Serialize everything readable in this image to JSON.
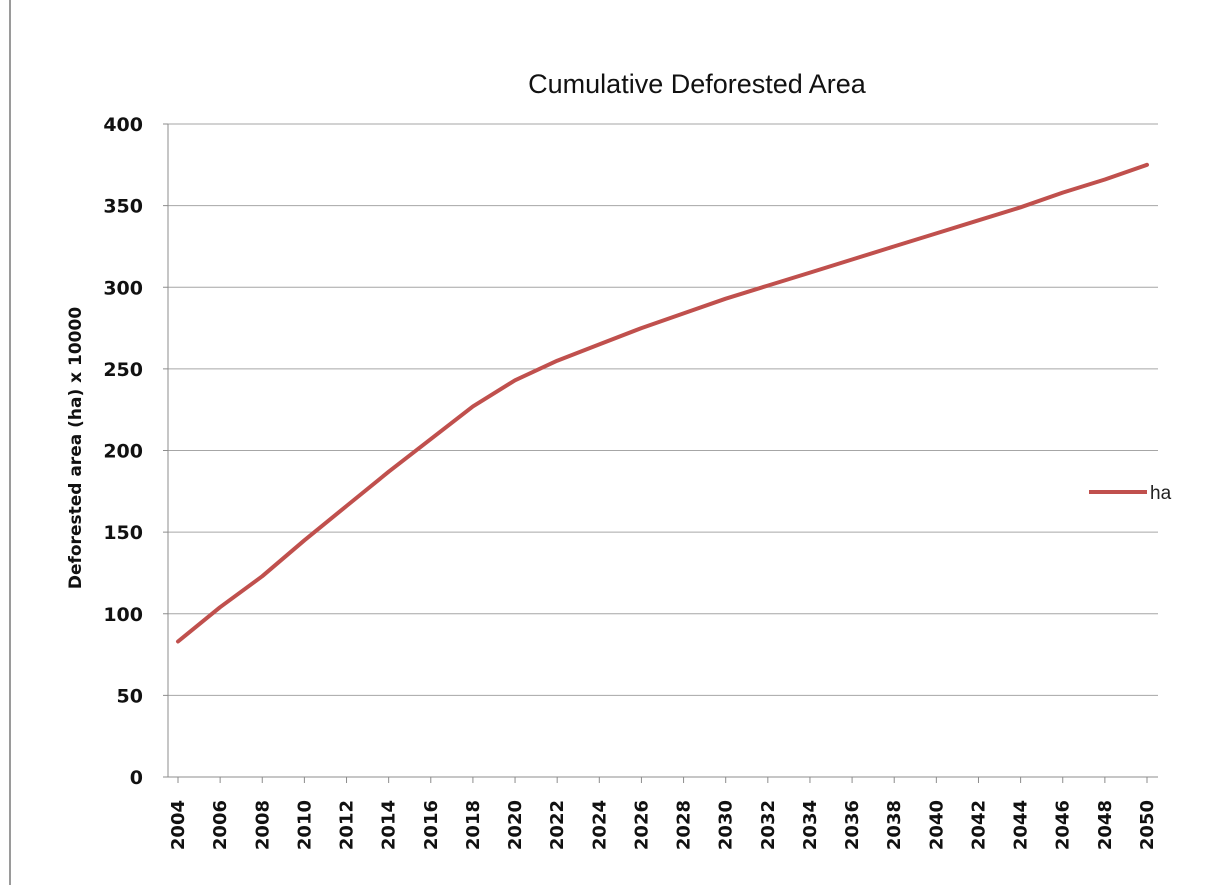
{
  "chart_data": {
    "type": "line",
    "title": "Cumulative Deforested Area",
    "xlabel": "",
    "ylabel": "Deforested area (ha) x 10000",
    "ylim": [
      0,
      400
    ],
    "yticks": [
      "0",
      "50",
      "100",
      "150",
      "200",
      "250",
      "300",
      "350",
      "400"
    ],
    "x": [
      "2004",
      "2006",
      "2008",
      "2010",
      "2012",
      "2014",
      "2016",
      "2018",
      "2020",
      "2022",
      "2024",
      "2026",
      "2028",
      "2030",
      "2032",
      "2034",
      "2036",
      "2038",
      "2040",
      "2042",
      "2044",
      "2046",
      "2048",
      "2050"
    ],
    "series": [
      {
        "name": "ha",
        "values": [
          83,
          104,
          123,
          145,
          166,
          187,
          207,
          227,
          243,
          255,
          265,
          275,
          284,
          293,
          301,
          309,
          317,
          325,
          333,
          341,
          349,
          358,
          366,
          375
        ]
      }
    ],
    "grid": true,
    "legend_position": "right",
    "colors": {
      "series": "#c0504d",
      "grid": "#a6a6a6",
      "axis": "#8c8c8c"
    }
  }
}
